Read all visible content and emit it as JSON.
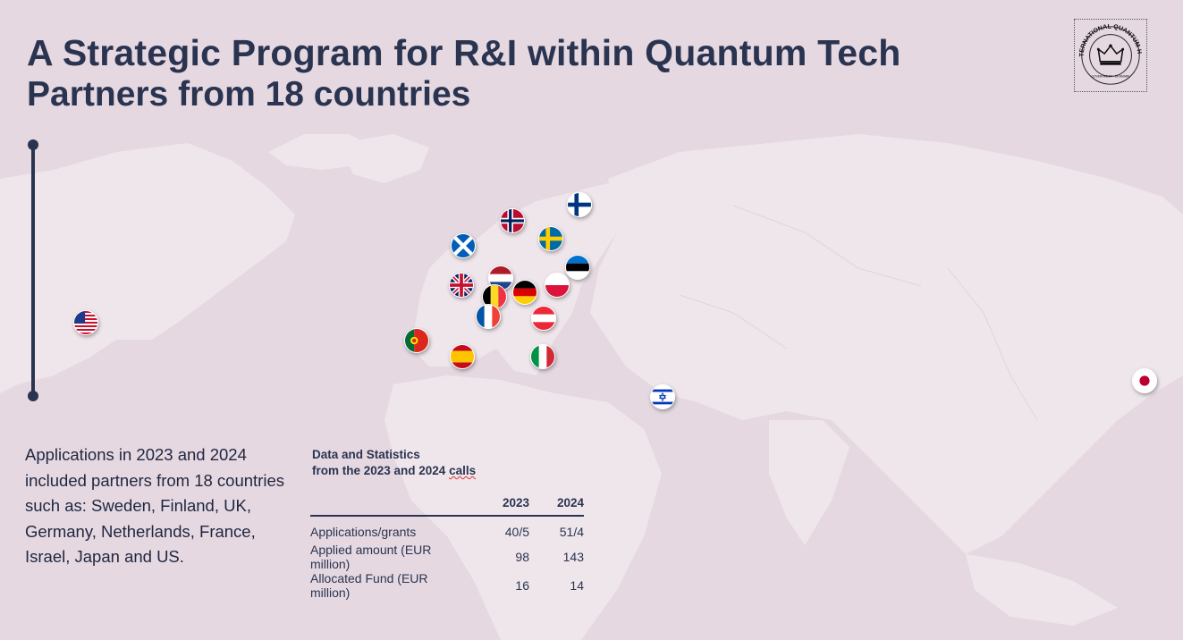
{
  "header": {
    "title": "A Strategic Program for R&I within Quantum Tech",
    "subtitle": "Partners from 18 countries"
  },
  "logo": {
    "ring_text": "INTERNATIONAL QUANTUM HUB",
    "sub_text": "GOVERNMENT · DENMARK"
  },
  "intro_text": "Applications in 2023 and 2024 included partners from 18 countries such as: Sweden, Finland, UK, Germany, Netherlands, France, Israel, Japan and US.",
  "stats": {
    "heading_line1": "Data and Statistics",
    "heading_line2_prefix": "from the 2023 and 2024 ",
    "heading_line2_word": "calls",
    "columns": [
      "",
      "2023",
      "2024"
    ],
    "rows": [
      {
        "label": "Applications/grants",
        "y2023": "40/5",
        "y2024": "51/4"
      },
      {
        "label": "Applied amount (EUR million)",
        "y2023": "98",
        "y2024": "143"
      },
      {
        "label": "Allocated Fund (EUR million)",
        "y2023": "16",
        "y2024": "14"
      }
    ]
  },
  "flags": [
    "usa",
    "norway",
    "finland",
    "scotland",
    "sweden",
    "estonia",
    "netherlands",
    "uk",
    "poland",
    "belgium",
    "germany",
    "france",
    "austria",
    "portugal",
    "spain",
    "italy",
    "israel",
    "japan"
  ],
  "colors": {
    "background": "#e5d8e1",
    "land": "#ede4ea",
    "text": "#2a3450"
  }
}
